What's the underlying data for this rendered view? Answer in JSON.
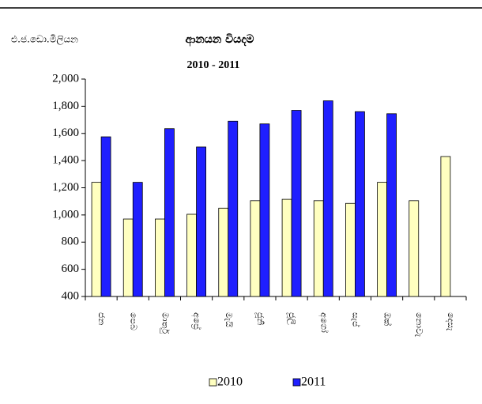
{
  "chart_data": {
    "type": "bar",
    "title": "ආනයන වියදම",
    "subtitle": "2010 - 2011",
    "y_label": "එ.ජ.ඩො.මිලියන",
    "categories": [
      "ජන",
      "පෙබ",
      "මාර්තු",
      "අප්‍රේ",
      "මැයි",
      "ජූනි",
      "ජූලි",
      "අගෝ",
      "සැප්",
      "ඔක්",
      "නොවැ",
      "දෙසැ"
    ],
    "series": [
      {
        "name": "2010",
        "color": "#ffffc0",
        "values": [
          1240,
          970,
          970,
          1005,
          1050,
          1105,
          1115,
          1105,
          1085,
          1240,
          1105,
          1430
        ]
      },
      {
        "name": "2011",
        "color": "#1f1fff",
        "values": [
          1575,
          1240,
          1635,
          1500,
          1690,
          1670,
          1770,
          1840,
          1760,
          1745,
          null,
          null
        ]
      }
    ],
    "ylim": [
      400,
      2000
    ],
    "yticks": [
      400,
      600,
      800,
      {
        "value": 1000,
        "label": "1,000"
      },
      {
        "value": 1200,
        "label": "1,200"
      },
      {
        "value": 1400,
        "label": "1,400"
      },
      {
        "value": 1600,
        "label": "1,600"
      },
      {
        "value": 1800,
        "label": "1,800"
      },
      {
        "value": 2000,
        "label": "2,000"
      }
    ],
    "grid": false
  }
}
